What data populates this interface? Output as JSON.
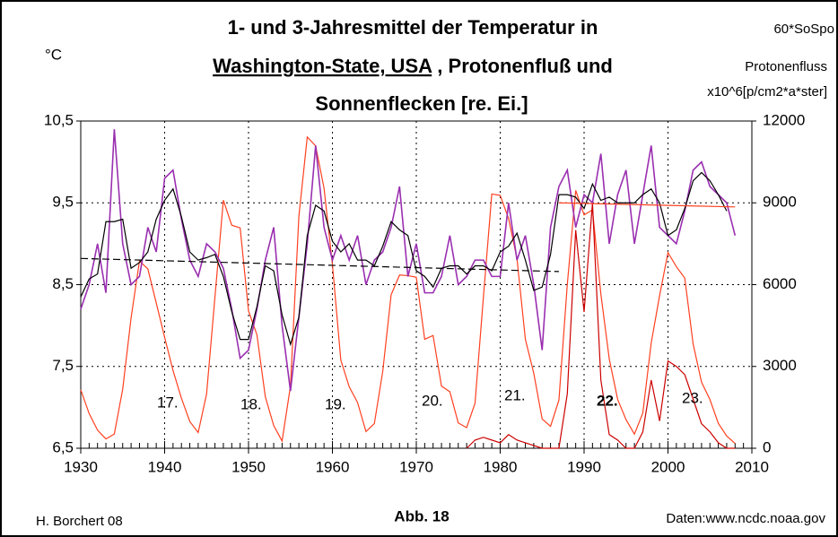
{
  "chart_data": {
    "type": "line",
    "title": [
      "1- und 3-Jahresmittel der Temperatur in",
      "Washington-State, USA",
      " , Protonenfluß und",
      "Sonnenflecken [re. Ei.]"
    ],
    "y_label": "°C",
    "y2_label": [
      "60*SoSpo",
      "Protonenfluss",
      "x10^6[p/cm2*a*ster]"
    ],
    "annotations": [
      "17.",
      "18.",
      "19.",
      "20.",
      "21.",
      "22.",
      "23."
    ],
    "footer": {
      "left": "H. Borchert 08",
      "center": "Abb. 18",
      "right": "Daten:www.ncdc.noaa.gov"
    },
    "x": [
      1930,
      1931,
      1932,
      1933,
      1934,
      1935,
      1936,
      1937,
      1938,
      1939,
      1940,
      1941,
      1942,
      1943,
      1944,
      1945,
      1946,
      1947,
      1948,
      1949,
      1950,
      1951,
      1952,
      1953,
      1954,
      1955,
      1956,
      1957,
      1958,
      1959,
      1960,
      1961,
      1962,
      1963,
      1964,
      1965,
      1966,
      1967,
      1968,
      1969,
      1970,
      1971,
      1972,
      1973,
      1974,
      1975,
      1976,
      1977,
      1978,
      1979,
      1980,
      1981,
      1982,
      1983,
      1984,
      1985,
      1986,
      1987,
      1988,
      1989,
      1990,
      1991,
      1992,
      1993,
      1994,
      1995,
      1996,
      1997,
      1998,
      1999,
      2000,
      2001,
      2002,
      2003,
      2004,
      2005,
      2006,
      2007,
      2008
    ],
    "series": [
      {
        "color": "#ff4020",
        "axis": "y2",
        "values": [
          2142,
          1272,
          666,
          342,
          522,
          2166,
          4782,
          6864,
          6576,
          5328,
          4068,
          2850,
          1836,
          978,
          576,
          1992,
          5556,
          9096,
          8178,
          8082,
          5034,
          4164,
          1890,
          834,
          264,
          2280,
          8502,
          11412,
          11088,
          9540,
          6738,
          3234,
          2256,
          1674,
          612,
          906,
          2820,
          5628,
          6354,
          6330,
          6270,
          3996,
          4134,
          2280,
          2070,
          930,
          756,
          1650,
          5550,
          9324,
          9276,
          8424,
          6954,
          3996,
          2754,
          1074,
          804,
          1764,
          6012,
          9456,
          8556,
          8742,
          5658,
          3276,
          1794,
          1050,
          516,
          1290,
          3858,
          5598,
          7176,
          6660,
          6240,
          3822,
          2424,
          1788,
          912,
          450,
          174
        ]
      },
      {
        "color": "#cc0000",
        "axis": "y2",
        "x": [
          1976,
          1977,
          1978,
          1979,
          1980,
          1981,
          1982,
          1983,
          1984,
          1985,
          1986,
          1987,
          1988,
          1989,
          1990,
          1991,
          1992,
          1993,
          1994,
          1995,
          1996,
          1997,
          1998,
          1999,
          2000,
          2001,
          2002,
          2003,
          2004,
          2005,
          2006,
          2007,
          2008
        ],
        "values": [
          0,
          300,
          400,
          300,
          200,
          500,
          300,
          200,
          100,
          0,
          0,
          0,
          2000,
          8000,
          5000,
          9000,
          2500,
          500,
          300,
          0,
          0,
          600,
          2500,
          1000,
          3200,
          3000,
          2700,
          1800,
          900,
          600,
          200,
          0,
          0
        ]
      },
      {
        "color": "#9a2fb0",
        "values": [
          8.2,
          8.5,
          9.0,
          8.4,
          10.4,
          9.0,
          8.5,
          8.6,
          9.2,
          8.9,
          9.8,
          9.9,
          9.3,
          8.8,
          8.6,
          9.0,
          8.9,
          8.7,
          8.2,
          7.6,
          7.7,
          8.2,
          8.8,
          9.2,
          8.0,
          7.2,
          8.1,
          9.0,
          10.2,
          9.2,
          8.8,
          9.1,
          8.8,
          9.1,
          8.5,
          8.8,
          8.9,
          9.2,
          9.7,
          8.6,
          9.0,
          8.4,
          8.4,
          8.6,
          9.1,
          8.5,
          8.6,
          8.8,
          8.8,
          8.6,
          8.6,
          9.5,
          8.8,
          9.1,
          8.5,
          7.7,
          9.2,
          9.7,
          9.9,
          9.2,
          9.6,
          9.5,
          10.1,
          9.0,
          9.6,
          9.9,
          9.0,
          9.6,
          10.2,
          9.2,
          9.1,
          9.0,
          9.4,
          9.9,
          10.0,
          9.7,
          9.6,
          9.5,
          9.1
        ]
      },
      {
        "color": "#000000",
        "values": [
          8.35,
          8.57,
          8.63,
          9.27,
          9.27,
          9.3,
          8.7,
          8.77,
          8.9,
          9.3,
          9.53,
          9.67,
          9.33,
          8.9,
          8.8,
          8.83,
          8.87,
          8.6,
          8.17,
          7.83,
          7.83,
          8.23,
          8.73,
          8.67,
          8.13,
          7.77,
          8.1,
          9.1,
          9.47,
          9.4,
          9.03,
          8.9,
          9.0,
          8.8,
          8.8,
          8.73,
          8.97,
          9.27,
          9.17,
          9.1,
          8.67,
          8.6,
          8.47,
          8.7,
          8.73,
          8.73,
          8.63,
          8.73,
          8.73,
          8.67,
          8.9,
          8.97,
          9.13,
          8.8,
          8.43,
          8.47,
          8.87,
          9.6,
          9.6,
          9.57,
          9.43,
          9.73,
          9.53,
          9.57,
          9.5,
          9.5,
          9.5,
          9.6,
          9.67,
          9.5,
          9.1,
          9.17,
          9.43,
          9.77,
          9.87,
          9.77,
          9.6,
          9.4,
          null
        ]
      },
      {
        "color": "#000000",
        "dashed": true,
        "x": [
          1930,
          1987
        ],
        "values": [
          8.82,
          8.66
        ]
      },
      {
        "color": "#ff4020",
        "x": [
          1987,
          2008
        ],
        "values": [
          9.5,
          9.45
        ]
      }
    ],
    "xlim": [
      1930,
      2010
    ],
    "xticks": [
      1930,
      1940,
      1950,
      1960,
      1970,
      1980,
      1990,
      2000,
      2010
    ],
    "ylim": [
      6.5,
      10.5
    ],
    "yticks": [
      {
        "value": 6.5,
        "label": "6,5"
      },
      {
        "value": 7.5,
        "label": "7,5"
      },
      {
        "value": 8.5,
        "label": "8,5"
      },
      {
        "value": 9.5,
        "label": "9,5"
      },
      {
        "value": 10.5,
        "label": "10,5"
      }
    ],
    "y2lim": [
      0,
      12000
    ],
    "y2ticks": [
      0,
      3000,
      6000,
      9000,
      12000
    ],
    "grid": true
  }
}
